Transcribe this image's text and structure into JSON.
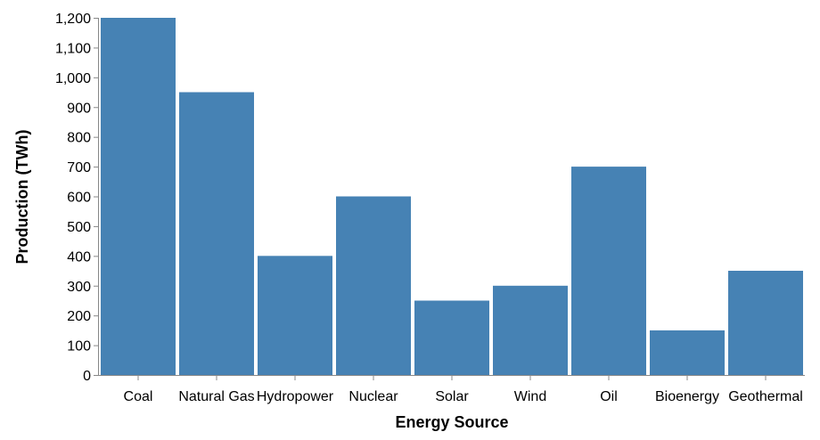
{
  "chart_data": {
    "type": "bar",
    "title": "",
    "xlabel": "Energy Source",
    "ylabel": "Production (TWh)",
    "categories": [
      "Coal",
      "Natural Gas",
      "Hydropower",
      "Nuclear",
      "Solar",
      "Wind",
      "Oil",
      "Bioenergy",
      "Geothermal"
    ],
    "values": [
      1200,
      950,
      400,
      600,
      250,
      300,
      700,
      150,
      350
    ],
    "ylim": [
      0,
      1200
    ],
    "yticks": [
      0,
      100,
      200,
      300,
      400,
      500,
      600,
      700,
      800,
      900,
      1000,
      1100,
      1200
    ],
    "ytick_labels": [
      "0",
      "100",
      "200",
      "300",
      "400",
      "500",
      "600",
      "700",
      "800",
      "900",
      "1,000",
      "1,100",
      "1,200"
    ],
    "grid": false,
    "bar_color": "#4682b4",
    "axis_color": "#888888"
  }
}
